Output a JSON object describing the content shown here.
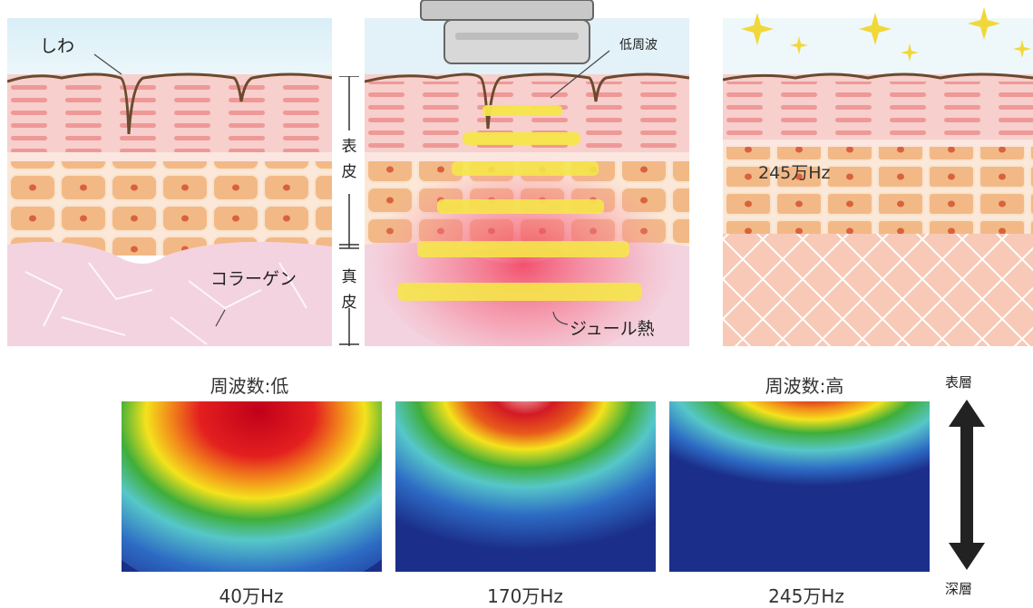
{
  "labels": {
    "wrinkle": "しわ",
    "collagen": "コラーゲン",
    "low_frequency": "低周波",
    "joule_heat": "ジュール熱",
    "epidermis": [
      "表",
      "皮"
    ],
    "dermis": [
      "真",
      "皮"
    ],
    "panel3_freq": "245万Hz"
  },
  "captions": {
    "freq_low": "周波数:低",
    "freq_high": "周波数:高"
  },
  "heatmaps": [
    {
      "freq": "40万Hz"
    },
    {
      "freq": "170万Hz"
    },
    {
      "freq": "245万Hz"
    }
  ],
  "depth_axis": {
    "top": "表層",
    "bottom": "深層"
  },
  "colors": {
    "epidermis_pink": "#f7c9c6",
    "cell_orange": "#f4c49a",
    "dermis_pink": "#f3d3df",
    "ultrasound_yellow": "#f5e64a",
    "heat_red": "#d8122a",
    "heat_blue": "#1a3a9a"
  }
}
